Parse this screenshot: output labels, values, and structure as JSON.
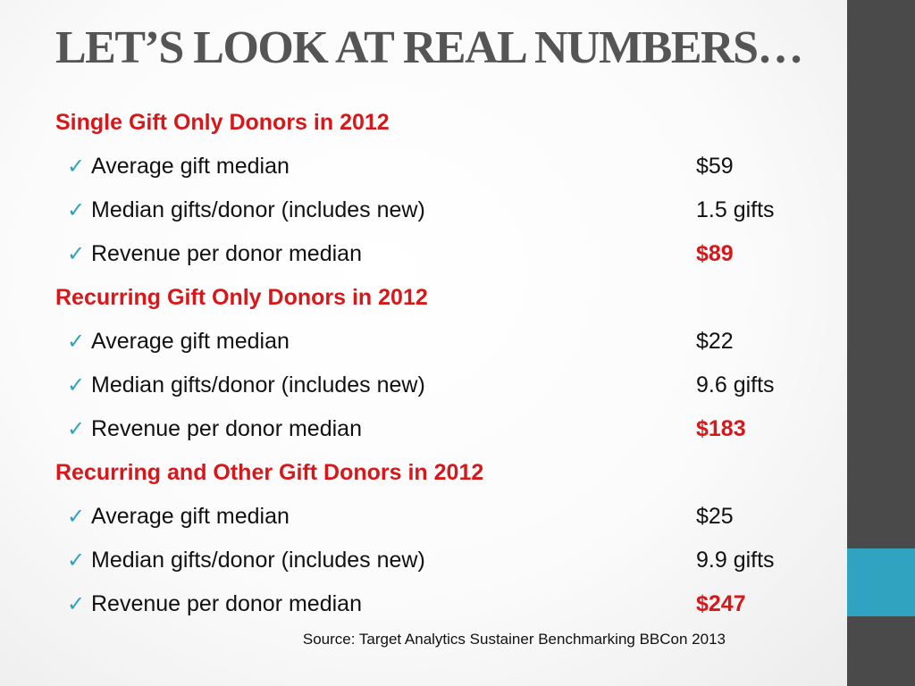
{
  "title": "LET’S LOOK AT REAL NUMBERS…",
  "check_icon": "✓",
  "colors": {
    "heading_red": "#d6181b",
    "accent_teal": "#2fa3c0",
    "sidebar_gray": "#4a4a4a",
    "title_gray": "#555555"
  },
  "sections": [
    {
      "heading": "Single Gift Only Donors in 2012",
      "rows": [
        {
          "label": "Average gift median",
          "value": "$59",
          "emphasis": false
        },
        {
          "label": "Median gifts/donor (includes new)",
          "value": "1.5 gifts",
          "emphasis": false
        },
        {
          "label": "Revenue per donor median",
          "value": "$89",
          "emphasis": true
        }
      ]
    },
    {
      "heading": "Recurring Gift Only Donors in 2012",
      "rows": [
        {
          "label": "Average gift median",
          "value": "$22",
          "emphasis": false
        },
        {
          "label": "Median gifts/donor (includes new)",
          "value": "9.6 gifts",
          "emphasis": false
        },
        {
          "label": "Revenue per donor median",
          "value": "$183",
          "emphasis": true
        }
      ]
    },
    {
      "heading": "Recurring and Other Gift Donors in 2012",
      "rows": [
        {
          "label": "Average gift median",
          "value": "$25",
          "emphasis": false
        },
        {
          "label": "Median gifts/donor (includes new)",
          "value": "9.9 gifts",
          "emphasis": false
        },
        {
          "label": "Revenue per donor median",
          "value": "$247",
          "emphasis": true
        }
      ]
    }
  ],
  "source": "Source: Target Analytics Sustainer Benchmarking  BBCon 2013"
}
